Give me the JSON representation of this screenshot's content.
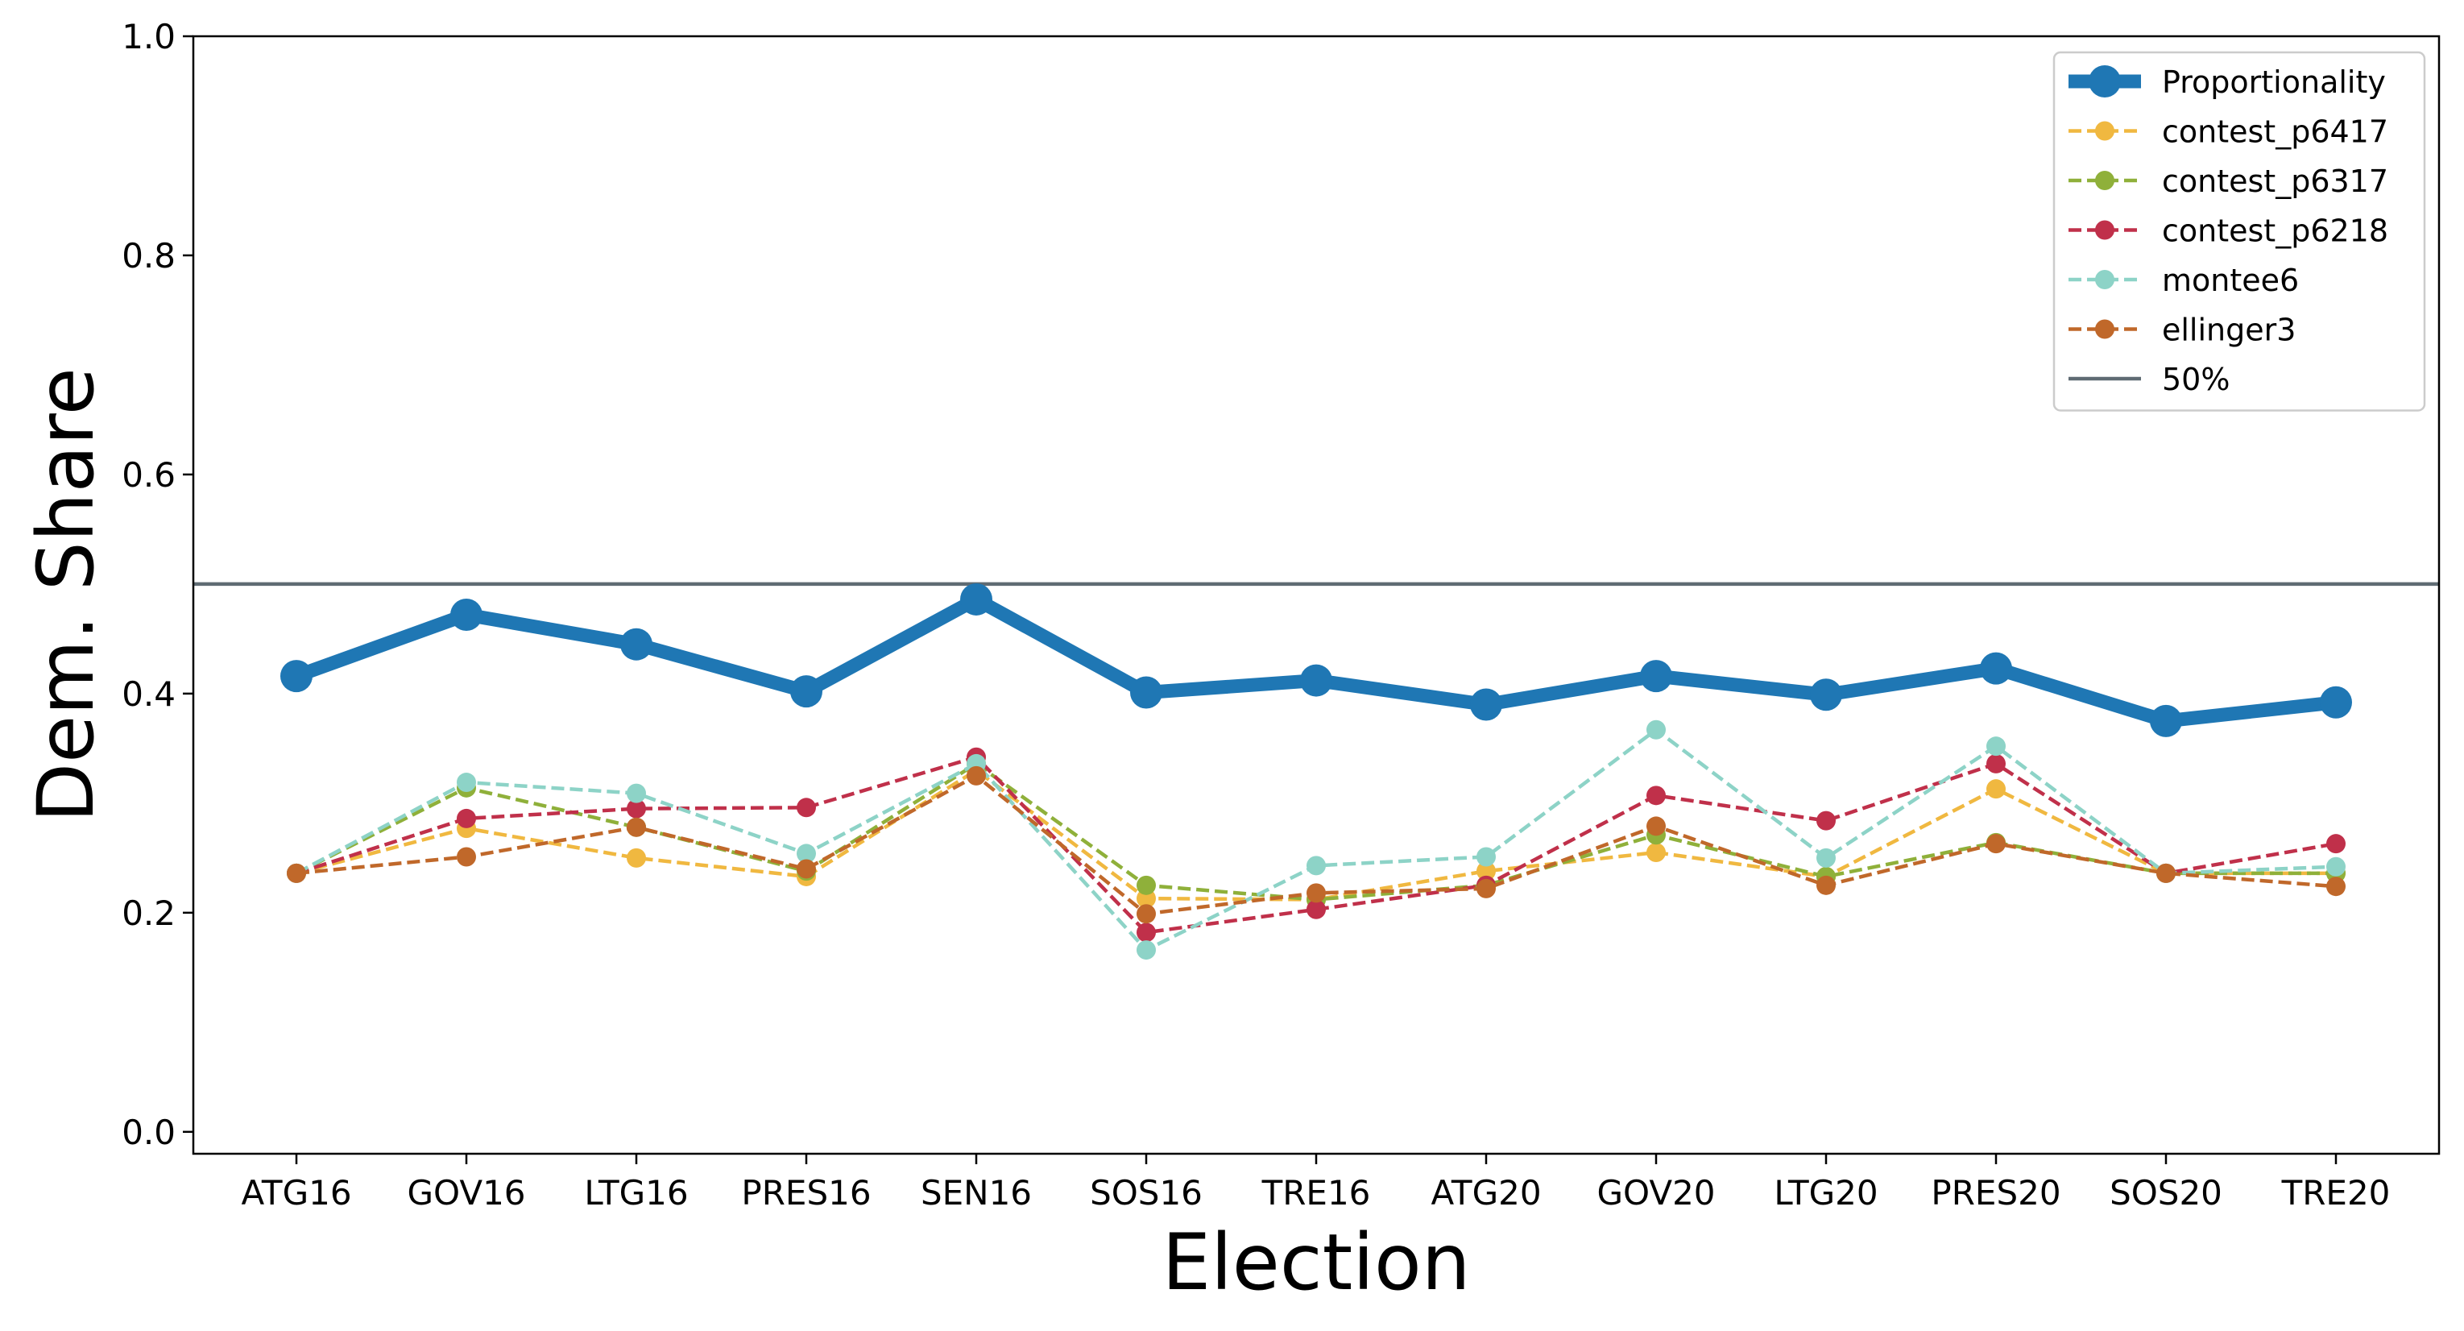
{
  "chart_data": {
    "type": "line",
    "title": "",
    "xlabel": "Election",
    "ylabel": "Dem. Share",
    "ylim": [
      -0.02,
      1.0
    ],
    "yticks": [
      0.0,
      0.2,
      0.4,
      0.6,
      0.8,
      1.0
    ],
    "ytick_labels": [
      "0.0",
      "0.2",
      "0.4",
      "0.6",
      "0.8",
      "1.0"
    ],
    "grid": false,
    "legend_position": "top-right",
    "categories": [
      "ATG16",
      "GOV16",
      "LTG16",
      "PRES16",
      "SEN16",
      "SOS16",
      "TRE16",
      "ATG20",
      "GOV20",
      "LTG20",
      "PRES20",
      "SOS20",
      "TRE20"
    ],
    "reference_line": {
      "name": "50%",
      "value": 0.5,
      "color": "#5f6b73"
    },
    "series": [
      {
        "name": "Proportionality",
        "color": "#1f77b4",
        "style": "solid-thick",
        "values": [
          0.416,
          0.472,
          0.445,
          0.402,
          0.486,
          0.401,
          0.412,
          0.39,
          0.416,
          0.399,
          0.423,
          0.375,
          0.392
        ]
      },
      {
        "name": "contest_p6417",
        "color": "#f0b840",
        "style": "dashed",
        "values": [
          0.236,
          0.277,
          0.25,
          0.233,
          0.33,
          0.213,
          0.212,
          0.238,
          0.255,
          0.233,
          0.313,
          0.236,
          0.236
        ]
      },
      {
        "name": "contest_p6317",
        "color": "#8fb03a",
        "style": "dashed",
        "values": [
          0.236,
          0.314,
          0.278,
          0.238,
          0.336,
          0.225,
          0.212,
          0.225,
          0.271,
          0.233,
          0.264,
          0.236,
          0.236
        ]
      },
      {
        "name": "contest_p6218",
        "color": "#c0304a",
        "style": "dashed",
        "values": [
          0.236,
          0.286,
          0.295,
          0.296,
          0.342,
          0.182,
          0.203,
          0.225,
          0.307,
          0.284,
          0.336,
          0.236,
          0.263
        ]
      },
      {
        "name": "montee6",
        "color": "#8dd3c7",
        "style": "dashed",
        "values": [
          0.236,
          0.319,
          0.309,
          0.254,
          0.336,
          0.166,
          0.243,
          0.251,
          0.367,
          0.25,
          0.352,
          0.236,
          0.242
        ]
      },
      {
        "name": "ellinger3",
        "color": "#c0682a",
        "style": "dashed",
        "values": [
          0.236,
          0.251,
          0.278,
          0.24,
          0.325,
          0.199,
          0.218,
          0.222,
          0.279,
          0.225,
          0.263,
          0.236,
          0.224
        ]
      }
    ]
  }
}
